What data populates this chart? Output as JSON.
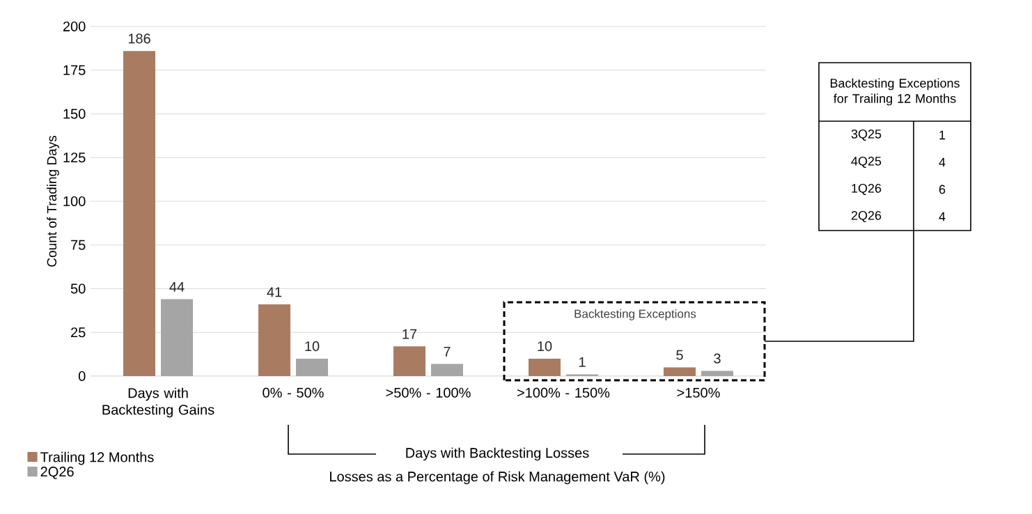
{
  "chart_data": [
    {
      "type": "bar",
      "ylabel": "Count of Trading Days",
      "xlabel": "Losses as a Percentage of Risk Management VaR (%)",
      "categories": [
        "Days with Backtesting Gains",
        "0% - 50%",
        ">50% - 100%",
        ">100% - 150%",
        ">150%"
      ],
      "series": [
        {
          "name": "Trailing 12 Months",
          "color": "#a97c62",
          "values": [
            186,
            41,
            17,
            10,
            5
          ]
        },
        {
          "name": "2Q26",
          "color": "#a5a5a5",
          "values": [
            44,
            10,
            7,
            1,
            3
          ]
        }
      ],
      "ylim": [
        0,
        200
      ],
      "yticks": [
        0,
        25,
        50,
        75,
        100,
        125,
        150,
        175,
        200
      ],
      "grid": "y",
      "legend": "bottom left",
      "data_labels": true,
      "annotations": [
        "Backtesting Exceptions",
        "Days with Backtesting Losses"
      ]
    },
    {
      "type": "other",
      "title": "Backtesting Exceptions for Trailing 12 Months",
      "categories": [
        "3Q25",
        "4Q25",
        "1Q26",
        "2Q26"
      ],
      "values": [
        1,
        4,
        6,
        4
      ],
      "data_labels": true
    }
  ]
}
